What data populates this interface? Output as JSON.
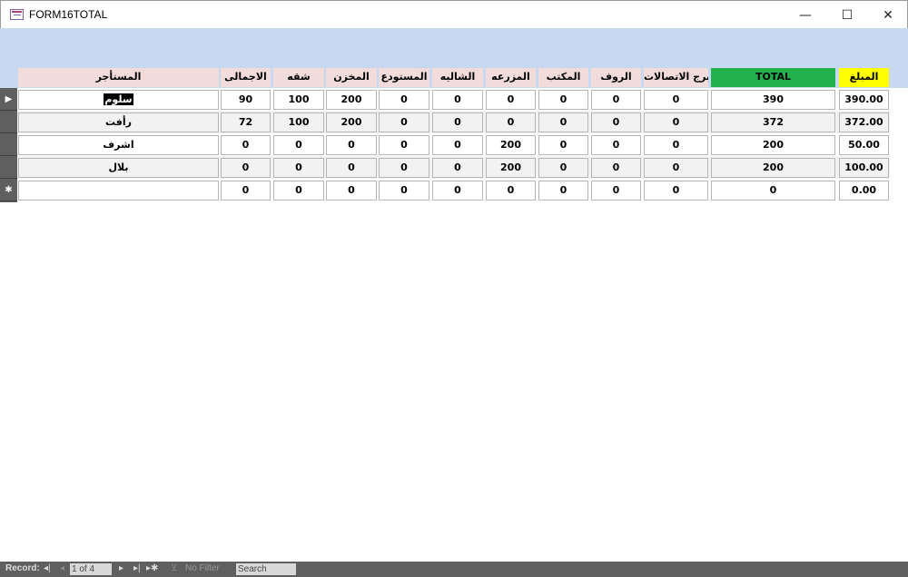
{
  "window": {
    "title": "FORM16TOTAL",
    "minimize": "—",
    "maximize": "☐",
    "close": "✕"
  },
  "columns": [
    "المستأجر",
    "الاجمالى",
    "شقه",
    "المخزن",
    "المستودع",
    "الشاليه",
    "المزرعه",
    "المكتب",
    "الروف",
    "برج الاتصالات",
    "TOTAL",
    "المبلغ"
  ],
  "colors": {
    "header": "#f2dcdb",
    "total_header": "#22b14c",
    "amount_header": "#ffff00",
    "band": "#c6d9f0"
  },
  "rows": [
    [
      "سلوم",
      "90",
      "100",
      "200",
      "0",
      "0",
      "0",
      "0",
      "0",
      "0",
      "390",
      "390.00"
    ],
    [
      "رأفت",
      "72",
      "100",
      "200",
      "0",
      "0",
      "0",
      "0",
      "0",
      "0",
      "372",
      "372.00"
    ],
    [
      "اشرف",
      "0",
      "0",
      "0",
      "0",
      "0",
      "200",
      "0",
      "0",
      "0",
      "200",
      "50.00"
    ],
    [
      "بلال",
      "0",
      "0",
      "0",
      "0",
      "0",
      "200",
      "0",
      "0",
      "0",
      "200",
      "100.00"
    ],
    [
      "",
      "0",
      "0",
      "0",
      "0",
      "0",
      "0",
      "0",
      "0",
      "0",
      "0",
      "0.00"
    ]
  ],
  "status": {
    "record_label": "Record:",
    "first": "◂|",
    "prev": "◂",
    "position": "1 of 4",
    "next": "▸",
    "last": "▸|",
    "new": "▸✱",
    "filter": "No Filter",
    "search": "Search"
  },
  "selectors": [
    "▶",
    "",
    "",
    "",
    "✱"
  ]
}
